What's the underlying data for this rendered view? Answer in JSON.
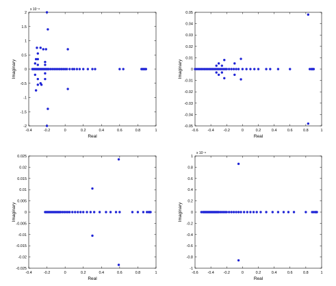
{
  "chart_data": [
    {
      "type": "scatter",
      "xlabel": "Real",
      "ylabel": "Imaginary",
      "xlim": [
        -0.4,
        1
      ],
      "ylim": [
        -2e-08,
        2e-08
      ],
      "y_multiplier": "x 10⁻⁸",
      "xticks": [
        "-0.4",
        "-0.2",
        "0",
        "0.2",
        "0.4",
        "0.6",
        "0.8",
        "1"
      ],
      "yticks": [
        "2",
        "1.5",
        "1",
        "0.5",
        "0",
        "-0.5",
        "-1",
        "-1.5",
        "-2"
      ],
      "xticks_v": [
        -0.4,
        -0.2,
        0,
        0.2,
        0.4,
        0.6,
        0.8,
        1
      ],
      "yticks_v": [
        2e-08,
        1.5e-08,
        1e-08,
        5e-09,
        0,
        -5e-09,
        -1e-08,
        -1.5e-08,
        -2e-08
      ],
      "grid": false,
      "points": [
        [
          -0.2,
          2e-08
        ],
        [
          -0.2,
          -2e-08
        ],
        [
          -0.19,
          1.4e-08
        ],
        [
          -0.19,
          -1.4e-08
        ],
        [
          -0.21,
          7e-09
        ],
        [
          -0.24,
          7e-09
        ],
        [
          -0.27,
          7.5e-09
        ],
        [
          -0.31,
          7.5e-09
        ],
        [
          -0.3,
          5.5e-09
        ],
        [
          -0.3,
          3.5e-09
        ],
        [
          -0.3,
          1.5e-09
        ],
        [
          -0.3,
          -5.5e-09
        ],
        [
          -0.32,
          -7.5e-09
        ],
        [
          -0.3,
          -3.5e-09
        ],
        [
          -0.32,
          3.5e-09
        ],
        [
          -0.33,
          2e-09
        ],
        [
          -0.33,
          -2e-09
        ],
        [
          -0.22,
          2.5e-09
        ],
        [
          -0.22,
          1.5e-09
        ],
        [
          -0.22,
          -1.5e-09
        ],
        [
          -0.22,
          -3.5e-09
        ],
        [
          -0.27,
          -5e-09
        ],
        [
          -0.26,
          -5.5e-09
        ],
        [
          0.03,
          7e-09
        ],
        [
          0.03,
          -7e-09
        ],
        [
          -0.36,
          0
        ],
        [
          -0.35,
          0
        ],
        [
          -0.34,
          0
        ],
        [
          -0.33,
          0
        ],
        [
          -0.32,
          0
        ],
        [
          -0.31,
          0
        ],
        [
          -0.3,
          0
        ],
        [
          -0.29,
          0
        ],
        [
          -0.28,
          0
        ],
        [
          -0.27,
          0
        ],
        [
          -0.26,
          0
        ],
        [
          -0.25,
          0
        ],
        [
          -0.24,
          0
        ],
        [
          -0.23,
          0
        ],
        [
          -0.22,
          0
        ],
        [
          -0.21,
          0
        ],
        [
          -0.2,
          0
        ],
        [
          -0.19,
          0
        ],
        [
          -0.18,
          0
        ],
        [
          -0.16,
          0
        ],
        [
          -0.14,
          0
        ],
        [
          -0.12,
          0
        ],
        [
          -0.1,
          0
        ],
        [
          -0.08,
          0
        ],
        [
          -0.06,
          0
        ],
        [
          -0.04,
          0
        ],
        [
          -0.02,
          0
        ],
        [
          0,
          0
        ],
        [
          0.02,
          0
        ],
        [
          0.05,
          0
        ],
        [
          0.08,
          0
        ],
        [
          0.1,
          0
        ],
        [
          0.13,
          0
        ],
        [
          0.16,
          0
        ],
        [
          0.2,
          0
        ],
        [
          0.25,
          0
        ],
        [
          0.3,
          0
        ],
        [
          0.33,
          0
        ],
        [
          0.6,
          0
        ],
        [
          0.64,
          0
        ],
        [
          0.84,
          0
        ],
        [
          0.85,
          0
        ],
        [
          0.86,
          0
        ],
        [
          0.87,
          0
        ],
        [
          0.88,
          0
        ],
        [
          0.89,
          0
        ]
      ]
    },
    {
      "type": "scatter",
      "xlabel": "Real",
      "ylabel": "Imaginary",
      "xlim": [
        -0.6,
        1
      ],
      "ylim": [
        -0.05,
        0.05
      ],
      "xticks": [
        "-0.6",
        "-0.4",
        "-0.2",
        "0",
        "0.2",
        "0.4",
        "0.6",
        "0.8",
        "1"
      ],
      "yticks": [
        "0.05",
        "0.04",
        "0.03",
        "0.02",
        "0.01",
        "0",
        "-0.01",
        "-0.02",
        "-0.03",
        "-0.04",
        "-0.05"
      ],
      "xticks_v": [
        -0.6,
        -0.4,
        -0.2,
        0,
        0.2,
        0.4,
        0.6,
        0.8,
        1
      ],
      "yticks_v": [
        0.05,
        0.04,
        0.03,
        0.02,
        0.01,
        0,
        -0.01,
        -0.02,
        -0.03,
        -0.04,
        -0.05
      ],
      "grid": false,
      "points": [
        [
          0.83,
          0.048
        ],
        [
          0.83,
          -0.048
        ],
        [
          -0.23,
          0.008
        ],
        [
          -0.23,
          -0.008
        ],
        [
          -0.3,
          0.005
        ],
        [
          -0.3,
          -0.005
        ],
        [
          -0.33,
          0.003
        ],
        [
          -0.33,
          -0.003
        ],
        [
          -0.02,
          0.009
        ],
        [
          -0.02,
          -0.009
        ],
        [
          -0.1,
          0.005
        ],
        [
          -0.1,
          -0.005
        ],
        [
          -0.26,
          0.003
        ],
        [
          -0.26,
          -0.003
        ],
        [
          -0.6,
          0
        ],
        [
          -0.58,
          0
        ],
        [
          -0.56,
          0
        ],
        [
          -0.54,
          0
        ],
        [
          -0.52,
          0
        ],
        [
          -0.5,
          0
        ],
        [
          -0.48,
          0
        ],
        [
          -0.46,
          0
        ],
        [
          -0.44,
          0
        ],
        [
          -0.42,
          0
        ],
        [
          -0.4,
          0
        ],
        [
          -0.38,
          0
        ],
        [
          -0.36,
          0
        ],
        [
          -0.34,
          0
        ],
        [
          -0.32,
          0
        ],
        [
          -0.3,
          0
        ],
        [
          -0.28,
          0
        ],
        [
          -0.26,
          0
        ],
        [
          -0.24,
          0
        ],
        [
          -0.22,
          0
        ],
        [
          -0.2,
          0
        ],
        [
          -0.17,
          0
        ],
        [
          -0.14,
          0
        ],
        [
          -0.11,
          0
        ],
        [
          -0.08,
          0
        ],
        [
          -0.05,
          0
        ],
        [
          0,
          0
        ],
        [
          0.05,
          0
        ],
        [
          0.1,
          0
        ],
        [
          0.15,
          0
        ],
        [
          0.2,
          0
        ],
        [
          0.3,
          0
        ],
        [
          0.35,
          0
        ],
        [
          0.45,
          0
        ],
        [
          0.6,
          0
        ],
        [
          0.85,
          0
        ],
        [
          0.87,
          0
        ],
        [
          0.88,
          0
        ],
        [
          0.89,
          0
        ],
        [
          0.9,
          0
        ]
      ]
    },
    {
      "type": "scatter",
      "xlabel": "Real",
      "ylabel": "Imaginary",
      "xlim": [
        -0.4,
        1
      ],
      "ylim": [
        -0.025,
        0.025
      ],
      "xticks": [
        "-0.4",
        "-0.2",
        "0",
        "0.2",
        "0.4",
        "0.6",
        "0.8",
        "1"
      ],
      "yticks": [
        "0.025",
        "0.02",
        "0.015",
        "0.01",
        "0.005",
        "0",
        "-0.005",
        "-0.01",
        "-0.015",
        "-0.02",
        "-0.025"
      ],
      "xticks_v": [
        -0.4,
        -0.2,
        0,
        0.2,
        0.4,
        0.6,
        0.8,
        1
      ],
      "yticks_v": [
        0.025,
        0.02,
        0.015,
        0.01,
        0.005,
        0,
        -0.005,
        -0.01,
        -0.015,
        -0.02,
        -0.025
      ],
      "grid": false,
      "points": [
        [
          0.59,
          0.0235
        ],
        [
          0.59,
          -0.0235
        ],
        [
          0.3,
          0.0105
        ],
        [
          0.3,
          -0.0105
        ],
        [
          -0.22,
          0
        ],
        [
          -0.21,
          0
        ],
        [
          -0.2,
          0
        ],
        [
          -0.19,
          0
        ],
        [
          -0.18,
          0
        ],
        [
          -0.17,
          0
        ],
        [
          -0.16,
          0
        ],
        [
          -0.15,
          0
        ],
        [
          -0.14,
          0
        ],
        [
          -0.13,
          0
        ],
        [
          -0.12,
          0
        ],
        [
          -0.11,
          0
        ],
        [
          -0.1,
          0
        ],
        [
          -0.09,
          0
        ],
        [
          -0.08,
          0
        ],
        [
          -0.07,
          0
        ],
        [
          -0.06,
          0
        ],
        [
          -0.05,
          0
        ],
        [
          -0.03,
          0
        ],
        [
          -0.01,
          0
        ],
        [
          0.01,
          0
        ],
        [
          0.03,
          0
        ],
        [
          0.05,
          0
        ],
        [
          0.08,
          0
        ],
        [
          0.11,
          0
        ],
        [
          0.14,
          0
        ],
        [
          0.17,
          0
        ],
        [
          0.2,
          0
        ],
        [
          0.24,
          0
        ],
        [
          0.28,
          0
        ],
        [
          0.32,
          0
        ],
        [
          0.38,
          0
        ],
        [
          0.45,
          0
        ],
        [
          0.5,
          0
        ],
        [
          0.56,
          0
        ],
        [
          0.6,
          0
        ],
        [
          0.74,
          0
        ],
        [
          0.8,
          0
        ],
        [
          0.86,
          0
        ],
        [
          0.9,
          0
        ],
        [
          0.92,
          0
        ],
        [
          0.93,
          0
        ],
        [
          0.94,
          0
        ]
      ]
    },
    {
      "type": "scatter",
      "xlabel": "Real",
      "ylabel": "Imaginary",
      "xlim": [
        -0.6,
        1
      ],
      "ylim": [
        -1e-08,
        1e-08
      ],
      "y_multiplier": "x 10⁻⁸",
      "xticks": [
        "-0.6",
        "-0.4",
        "-0.2",
        "0",
        "0.2",
        "0.4",
        "0.6",
        "0.8",
        "1"
      ],
      "yticks": [
        "1",
        "0.8",
        "0.6",
        "0.4",
        "0.2",
        "0",
        "-0.2",
        "-0.4",
        "-0.6",
        "-0.8",
        "-1"
      ],
      "xticks_v": [
        -0.6,
        -0.4,
        -0.2,
        0,
        0.2,
        0.4,
        0.6,
        0.8,
        1
      ],
      "yticks_v": [
        1e-08,
        8e-09,
        6e-09,
        4e-09,
        2e-09,
        0,
        -2e-09,
        -4e-09,
        -6e-09,
        -8e-09,
        -1e-08
      ],
      "grid": false,
      "points": [
        [
          -0.05,
          8.6e-09
        ],
        [
          -0.05,
          -8.6e-09
        ],
        [
          -0.52,
          0
        ],
        [
          -0.5,
          0
        ],
        [
          -0.49,
          0
        ],
        [
          -0.48,
          0
        ],
        [
          -0.47,
          0
        ],
        [
          -0.46,
          0
        ],
        [
          -0.45,
          0
        ],
        [
          -0.44,
          0
        ],
        [
          -0.43,
          0
        ],
        [
          -0.42,
          0
        ],
        [
          -0.41,
          0
        ],
        [
          -0.4,
          0
        ],
        [
          -0.39,
          0
        ],
        [
          -0.38,
          0
        ],
        [
          -0.37,
          0
        ],
        [
          -0.36,
          0
        ],
        [
          -0.35,
          0
        ],
        [
          -0.34,
          0
        ],
        [
          -0.33,
          0
        ],
        [
          -0.32,
          0
        ],
        [
          -0.31,
          0
        ],
        [
          -0.3,
          0
        ],
        [
          -0.28,
          0
        ],
        [
          -0.26,
          0
        ],
        [
          -0.24,
          0
        ],
        [
          -0.22,
          0
        ],
        [
          -0.2,
          0
        ],
        [
          -0.17,
          0
        ],
        [
          -0.14,
          0
        ],
        [
          -0.11,
          0
        ],
        [
          -0.08,
          0
        ],
        [
          -0.05,
          0
        ],
        [
          -0.02,
          0
        ],
        [
          0.02,
          0
        ],
        [
          0.06,
          0
        ],
        [
          0.1,
          0
        ],
        [
          0.14,
          0
        ],
        [
          0.18,
          0
        ],
        [
          0.23,
          0
        ],
        [
          0.3,
          0
        ],
        [
          0.38,
          0
        ],
        [
          0.45,
          0
        ],
        [
          0.52,
          0
        ],
        [
          0.58,
          0
        ],
        [
          0.65,
          0
        ],
        [
          0.8,
          0
        ],
        [
          0.88,
          0
        ],
        [
          0.9,
          0
        ],
        [
          0.92,
          0
        ],
        [
          0.93,
          0
        ],
        [
          0.94,
          0
        ]
      ]
    }
  ]
}
